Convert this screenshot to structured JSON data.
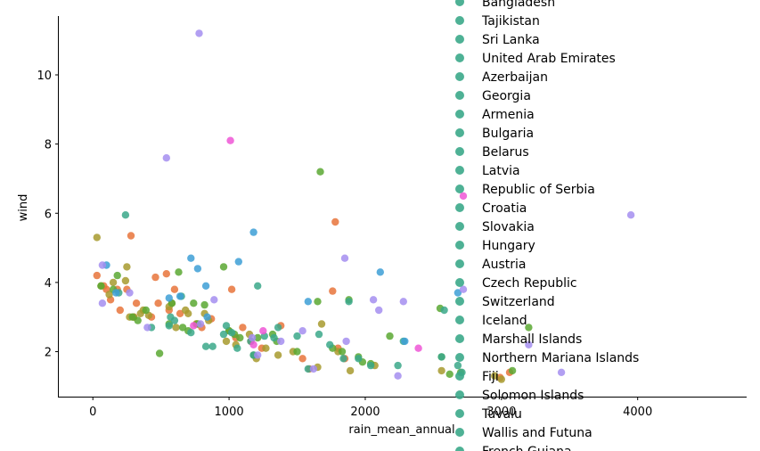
{
  "chart_data": {
    "type": "scatter",
    "xlabel": "rain_mean_annual",
    "ylabel": "wind",
    "xlim": [
      -250,
      4800
    ],
    "ylim": [
      0.7,
      11.7
    ],
    "xticks": [
      0,
      1000,
      2000,
      3000,
      4000
    ],
    "xtick_labels": [
      "0",
      "1000",
      "2000",
      "3000",
      "4000"
    ],
    "yticks": [
      2,
      4,
      6,
      8,
      10
    ],
    "ytick_labels": [
      "2",
      "4",
      "6",
      "8",
      "10"
    ],
    "grid": false,
    "legend_position": "right, overlapping plot",
    "legend": [
      {
        "label": "Bangladesh",
        "color": "#3ba889"
      },
      {
        "label": "Tajikistan",
        "color": "#3ba889"
      },
      {
        "label": "Sri Lanka",
        "color": "#3ba889"
      },
      {
        "label": "United Arab Emirates",
        "color": "#3ba889"
      },
      {
        "label": "Azerbaijan",
        "color": "#3ba889"
      },
      {
        "label": "Georgia",
        "color": "#3ba889"
      },
      {
        "label": "Armenia",
        "color": "#3ba889"
      },
      {
        "label": "Bulgaria",
        "color": "#3ba889"
      },
      {
        "label": "Belarus",
        "color": "#3ba889"
      },
      {
        "label": "Latvia",
        "color": "#3ba889"
      },
      {
        "label": "Republic of Serbia",
        "color": "#3ba889"
      },
      {
        "label": "Croatia",
        "color": "#3ba889"
      },
      {
        "label": "Slovakia",
        "color": "#3ba889"
      },
      {
        "label": "Hungary",
        "color": "#3ba889"
      },
      {
        "label": "Austria",
        "color": "#3ba889"
      },
      {
        "label": "Czech Republic",
        "color": "#3ba889"
      },
      {
        "label": "Switzerland",
        "color": "#3ba889"
      },
      {
        "label": "Iceland",
        "color": "#3ba889"
      },
      {
        "label": "Marshall Islands",
        "color": "#3ba889"
      },
      {
        "label": "Northern Mariana Islands",
        "color": "#3ba889"
      },
      {
        "label": "Fiji",
        "color": "#3ba889"
      },
      {
        "label": "Solomon Islands",
        "color": "#3ba889"
      },
      {
        "label": "Tuvalu",
        "color": "#3ba889"
      },
      {
        "label": "Wallis and Futuna",
        "color": "#3ba889"
      },
      {
        "label": "French Guiana",
        "color": "#3ba889"
      }
    ],
    "point_colors": {
      "orange": "#e8743b",
      "olive": "#a79a2e",
      "green": "#5ba832",
      "teal": "#3ba889",
      "blue": "#3d9fd6",
      "purple": "#a48ef0",
      "pink": "#ee56d6"
    },
    "series": [
      {
        "color_key": "orange",
        "points": [
          [
            30,
            4.2
          ],
          [
            80,
            3.9
          ],
          [
            100,
            3.8
          ],
          [
            130,
            3.5
          ],
          [
            180,
            3.8
          ],
          [
            200,
            3.2
          ],
          [
            250,
            3.8
          ],
          [
            280,
            5.35
          ],
          [
            300,
            3.0
          ],
          [
            320,
            3.4
          ],
          [
            430,
            3.0
          ],
          [
            460,
            4.15
          ],
          [
            480,
            3.4
          ],
          [
            540,
            4.25
          ],
          [
            560,
            3.2
          ],
          [
            600,
            3.8
          ],
          [
            640,
            3.1
          ],
          [
            760,
            2.8
          ],
          [
            800,
            2.7
          ],
          [
            870,
            2.95
          ],
          [
            1020,
            3.8
          ],
          [
            1050,
            2.4
          ],
          [
            1100,
            2.7
          ],
          [
            1160,
            2.3
          ],
          [
            1240,
            2.1
          ],
          [
            1380,
            2.75
          ],
          [
            1540,
            1.8
          ],
          [
            1590,
            1.5
          ],
          [
            1760,
            3.75
          ],
          [
            1780,
            5.75
          ],
          [
            1800,
            2.1
          ],
          [
            1850,
            1.8
          ],
          [
            2990,
            1.25
          ],
          [
            3060,
            1.4
          ]
        ]
      },
      {
        "color_key": "olive",
        "points": [
          [
            30,
            5.3
          ],
          [
            60,
            3.9
          ],
          [
            120,
            3.65
          ],
          [
            150,
            4.0
          ],
          [
            240,
            4.05
          ],
          [
            250,
            4.45
          ],
          [
            270,
            3.0
          ],
          [
            300,
            3.0
          ],
          [
            350,
            3.1
          ],
          [
            370,
            3.2
          ],
          [
            410,
            3.05
          ],
          [
            560,
            3.3
          ],
          [
            580,
            3.4
          ],
          [
            610,
            2.7
          ],
          [
            680,
            3.2
          ],
          [
            700,
            3.1
          ],
          [
            760,
            2.8
          ],
          [
            820,
            3.1
          ],
          [
            850,
            2.9
          ],
          [
            980,
            2.3
          ],
          [
            1000,
            2.6
          ],
          [
            1050,
            2.2
          ],
          [
            1150,
            2.5
          ],
          [
            1200,
            1.8
          ],
          [
            1270,
            2.1
          ],
          [
            1360,
            1.9
          ],
          [
            1470,
            2.0
          ],
          [
            1650,
            1.55
          ],
          [
            1680,
            2.8
          ],
          [
            1800,
            2.0
          ],
          [
            1890,
            1.45
          ],
          [
            2070,
            1.6
          ],
          [
            2560,
            1.45
          ],
          [
            2950,
            1.3
          ],
          [
            3000,
            1.2
          ]
        ]
      },
      {
        "color_key": "green",
        "points": [
          [
            60,
            3.9
          ],
          [
            150,
            3.8
          ],
          [
            180,
            4.2
          ],
          [
            290,
            3.0
          ],
          [
            330,
            2.9
          ],
          [
            390,
            3.2
          ],
          [
            490,
            1.95
          ],
          [
            560,
            2.8
          ],
          [
            580,
            3.4
          ],
          [
            630,
            4.3
          ],
          [
            660,
            2.7
          ],
          [
            700,
            2.6
          ],
          [
            740,
            3.4
          ],
          [
            770,
            2.8
          ],
          [
            820,
            3.35
          ],
          [
            960,
            4.45
          ],
          [
            1000,
            2.6
          ],
          [
            1040,
            2.5
          ],
          [
            1080,
            2.4
          ],
          [
            1180,
            1.9
          ],
          [
            1210,
            2.4
          ],
          [
            1320,
            2.5
          ],
          [
            1350,
            2.3
          ],
          [
            1500,
            2.0
          ],
          [
            1650,
            3.45
          ],
          [
            1670,
            7.2
          ],
          [
            1760,
            2.1
          ],
          [
            1830,
            2.0
          ],
          [
            1880,
            3.5
          ],
          [
            1950,
            1.85
          ],
          [
            1980,
            1.7
          ],
          [
            2040,
            1.65
          ],
          [
            2180,
            2.45
          ],
          [
            2550,
            3.25
          ],
          [
            2560,
            1.85
          ],
          [
            2620,
            1.35
          ],
          [
            2700,
            1.4
          ],
          [
            3080,
            1.45
          ],
          [
            3200,
            2.7
          ]
        ]
      },
      {
        "color_key": "teal",
        "points": [
          [
            240,
            5.95
          ],
          [
            190,
            3.7
          ],
          [
            430,
            2.7
          ],
          [
            560,
            2.75
          ],
          [
            570,
            3.0
          ],
          [
            600,
            2.9
          ],
          [
            650,
            3.6
          ],
          [
            720,
            2.55
          ],
          [
            830,
            2.15
          ],
          [
            880,
            2.15
          ],
          [
            960,
            2.5
          ],
          [
            980,
            2.75
          ],
          [
            1020,
            2.55
          ],
          [
            1060,
            2.1
          ],
          [
            1160,
            2.3
          ],
          [
            1180,
            1.9
          ],
          [
            1210,
            3.9
          ],
          [
            1260,
            2.45
          ],
          [
            1330,
            2.4
          ],
          [
            1360,
            2.7
          ],
          [
            1500,
            2.45
          ],
          [
            1580,
            1.5
          ],
          [
            1660,
            2.5
          ],
          [
            1740,
            2.2
          ],
          [
            1840,
            1.8
          ],
          [
            1880,
            3.45
          ],
          [
            1950,
            1.8
          ],
          [
            2040,
            1.6
          ],
          [
            2240,
            1.6
          ],
          [
            2280,
            2.3
          ],
          [
            2560,
            1.85
          ],
          [
            2580,
            3.2
          ],
          [
            2680,
            1.6
          ],
          [
            2710,
            1.4
          ]
        ]
      },
      {
        "color_key": "blue",
        "points": [
          [
            100,
            4.5
          ],
          [
            170,
            3.7
          ],
          [
            560,
            3.55
          ],
          [
            640,
            3.6
          ],
          [
            720,
            4.7
          ],
          [
            770,
            4.4
          ],
          [
            830,
            3.9
          ],
          [
            840,
            3.0
          ],
          [
            1070,
            4.6
          ],
          [
            1180,
            5.45
          ],
          [
            1580,
            3.45
          ],
          [
            2110,
            4.3
          ],
          [
            2290,
            2.3
          ],
          [
            2680,
            3.7
          ]
        ]
      },
      {
        "color_key": "purple",
        "points": [
          [
            70,
            4.5
          ],
          [
            70,
            3.4
          ],
          [
            270,
            3.7
          ],
          [
            400,
            2.7
          ],
          [
            540,
            7.6
          ],
          [
            780,
            11.2
          ],
          [
            790,
            2.8
          ],
          [
            890,
            3.5
          ],
          [
            1170,
            2.4
          ],
          [
            1210,
            1.9
          ],
          [
            1380,
            2.3
          ],
          [
            1540,
            2.6
          ],
          [
            1620,
            1.5
          ],
          [
            1850,
            4.7
          ],
          [
            1860,
            2.3
          ],
          [
            2060,
            3.5
          ],
          [
            2100,
            3.2
          ],
          [
            2240,
            1.3
          ],
          [
            2280,
            3.45
          ],
          [
            2720,
            3.8
          ],
          [
            3200,
            2.2
          ],
          [
            3440,
            1.4
          ],
          [
            3950,
            5.95
          ]
        ]
      },
      {
        "color_key": "pink",
        "points": [
          [
            740,
            2.75
          ],
          [
            1010,
            8.1
          ],
          [
            1180,
            2.2
          ],
          [
            1250,
            2.6
          ],
          [
            2390,
            2.1
          ],
          [
            2720,
            6.5
          ]
        ]
      }
    ]
  }
}
